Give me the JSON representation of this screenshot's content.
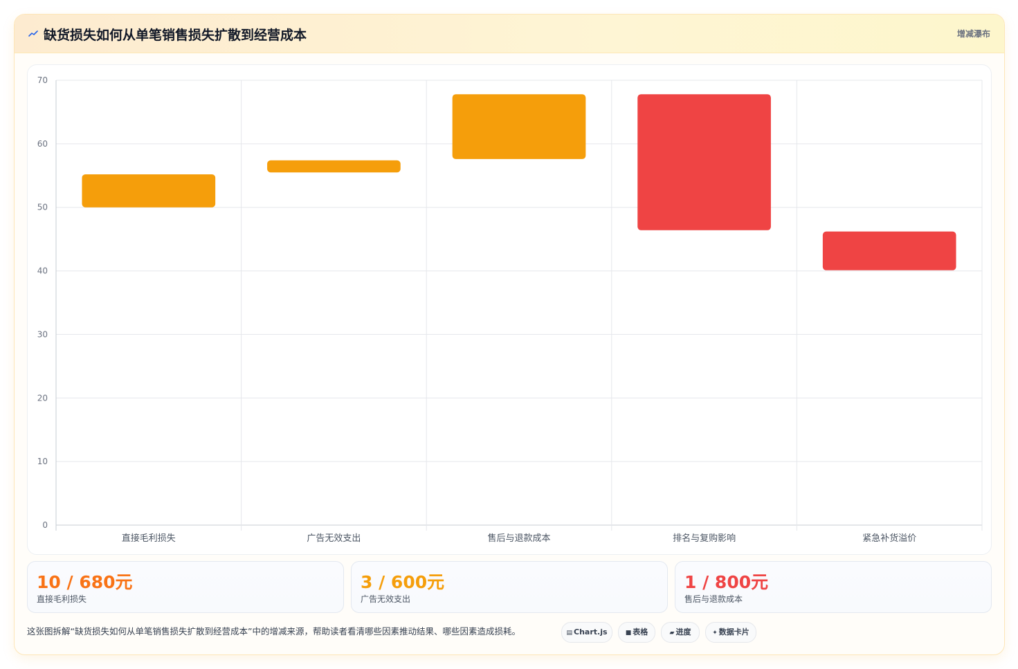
{
  "header": {
    "title": "缺货损失如何从单笔销售损失扩散到经营成本",
    "tag": "增减瀑布"
  },
  "colors": {
    "increase": "#f59e0b",
    "decrease": "#ef4444",
    "stat_orange": "#f97316",
    "stat_amber": "#f59e0b",
    "stat_red": "#ef4444"
  },
  "chart_data": {
    "type": "bar",
    "subtype": "waterfall (floating bars)",
    "categories": [
      "直接毛利损失",
      "广告无效支出",
      "售后与退款成本",
      "排名与复购影响",
      "紧急补货溢价"
    ],
    "series": [
      {
        "ranges": [
          [
            50,
            55.2
          ],
          [
            55.5,
            57.4
          ],
          [
            57.6,
            67.8
          ],
          [
            46.4,
            67.8
          ],
          [
            40.1,
            46.2
          ]
        ],
        "colors": [
          "#f59e0b",
          "#f59e0b",
          "#f59e0b",
          "#ef4444",
          "#ef4444"
        ]
      }
    ],
    "ylim": [
      0,
      70
    ],
    "yticks": [
      0,
      10,
      20,
      30,
      40,
      50,
      60,
      70
    ],
    "grid": true,
    "legend": "none"
  },
  "stats": [
    {
      "value": "10 / 680元",
      "label": "直接毛利损失",
      "icon": "none"
    },
    {
      "value": "3 / 600元",
      "label": "广告无效支出",
      "icon": "none"
    },
    {
      "value": "1 / 800元",
      "label": "售后与退款成本",
      "icon": "none"
    }
  ],
  "footer": {
    "description": "这张图拆解“缺货损失如何从单笔销售损失扩散到经营成本”中的增减来源，帮助读者看清哪些因素推动结果、哪些因素造成损耗。",
    "chips": [
      {
        "icon": "▤",
        "icon_name": "chart-icon",
        "label": "Chart.js"
      },
      {
        "icon": "■",
        "icon_name": "table-icon",
        "label": "表格"
      },
      {
        "icon": "▰",
        "icon_name": "progress-icon",
        "label": "进度"
      },
      {
        "icon": "✦",
        "icon_name": "sparkle-icon",
        "label": "数据卡片"
      }
    ]
  }
}
